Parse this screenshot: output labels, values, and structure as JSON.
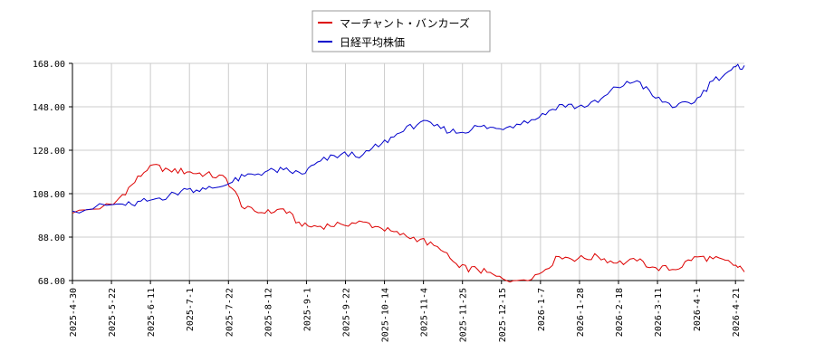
{
  "chart_data": {
    "type": "line",
    "legend_position": "top-center",
    "grid": true,
    "ylim": [
      68,
      168
    ],
    "y_ticks": [
      "168.00",
      "148.00",
      "128.00",
      "108.00",
      "88.00",
      "68.00"
    ],
    "x_tick_labels": [
      "2025-4-30",
      "2025-5-22",
      "2025-6-11",
      "2025-7-1",
      "2025-7-22",
      "2025-8-12",
      "2025-9-1",
      "2025-9-22",
      "2025-10-14",
      "2025-11-4",
      "2025-11-25",
      "2025-12-15",
      "2026-1-7",
      "2026-1-28",
      "2026-2-18",
      "2026-3-11",
      "2026-4-1",
      "2026-4-21"
    ],
    "x": [
      "2025-04-30",
      "2025-05-22",
      "2025-06-01",
      "2025-06-11",
      "2025-06-21",
      "2025-07-01",
      "2025-07-11",
      "2025-07-22",
      "2025-08-01",
      "2025-08-12",
      "2025-08-22",
      "2025-09-01",
      "2025-09-11",
      "2025-09-22",
      "2025-10-04",
      "2025-10-14",
      "2025-10-24",
      "2025-11-04",
      "2025-11-15",
      "2025-11-25",
      "2025-12-05",
      "2025-12-15",
      "2025-12-26",
      "2026-01-07",
      "2026-01-18",
      "2026-01-28",
      "2026-02-08",
      "2026-02-18",
      "2026-03-01",
      "2026-03-11",
      "2026-03-22",
      "2026-04-01",
      "2026-04-11",
      "2026-04-21",
      "2026-04-28"
    ],
    "series": [
      {
        "name": "マーチャント・バンカーズ",
        "color": "#dd0000",
        "values": [
          99,
          103,
          112,
          121,
          119,
          118,
          117,
          115,
          101,
          99,
          101,
          93,
          93,
          94,
          95,
          92,
          89,
          87,
          82,
          74,
          73,
          70,
          68,
          71,
          79,
          78,
          79,
          76,
          77,
          74,
          73,
          79,
          78,
          76,
          72
        ]
      },
      {
        "name": "日経平均株価",
        "color": "#0000cc",
        "values": [
          100,
          103,
          103,
          105,
          107,
          110,
          110,
          112,
          116,
          118,
          119,
          117,
          123,
          126,
          126,
          131,
          136,
          141,
          138,
          136,
          139,
          138,
          140,
          143,
          149,
          148,
          150,
          157,
          160,
          152,
          148,
          150,
          160,
          165,
          167
        ]
      }
    ]
  }
}
